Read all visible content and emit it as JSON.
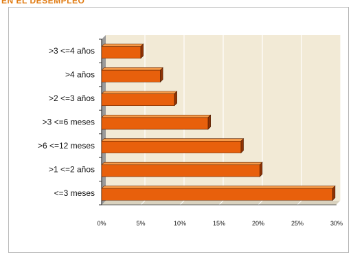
{
  "header": {
    "text": "EN EL DESEMPLEO"
  },
  "chart_data": {
    "type": "bar",
    "orientation": "horizontal",
    "title": "",
    "xlabel": "",
    "ylabel": "",
    "categories": [
      ">3 <=4 años",
      ">4 años",
      ">2 <=3 años",
      ">3 <=6 meses",
      ">6 <=12 meses",
      ">1 <=2 años",
      "<=3 meses"
    ],
    "values": [
      5,
      7.5,
      9.3,
      13.6,
      17.8,
      20.2,
      29.5
    ],
    "xlim": [
      0,
      30
    ],
    "x_ticks": [
      0,
      5,
      10,
      15,
      20,
      25,
      30
    ],
    "x_tick_labels": [
      "0%",
      "5%",
      "10%",
      "15%",
      "20%",
      "25%",
      "30%"
    ],
    "grid": true,
    "legend": "none",
    "colors": {
      "bar": "#e8600c",
      "bar_top": "#f59a4a",
      "bar_dark": "#8f3204",
      "plot_bg": "#f2ead6",
      "grid": "#ffffff"
    }
  }
}
